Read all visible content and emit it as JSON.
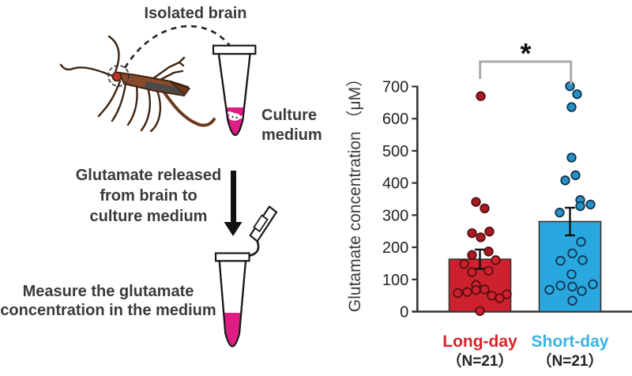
{
  "diagram": {
    "isolated_brain_label": "Isolated brain",
    "culture_medium": {
      "line1": "Culture",
      "line2": "medium"
    },
    "released": {
      "line1": "Glutamate released",
      "line2": "from brain to",
      "line3": "culture medium"
    },
    "measure": {
      "line1": "Measure the glutamate",
      "line2": "concentration in the medium"
    },
    "colors": {
      "medium_pink": "#DE1E83",
      "insect_brown": "#8A4A2C",
      "insect_dark": "#3F2410",
      "outline": "#1a1a1a"
    }
  },
  "chart_data": {
    "type": "bar+scatter",
    "ylabel": "Glutamate concentration （μM）",
    "ylim": [
      0,
      700
    ],
    "yticks": [
      0,
      100,
      200,
      300,
      400,
      500,
      600,
      700
    ],
    "significance_label": "*",
    "bracket_color": "#ababab",
    "categories": [
      "Long-day",
      "Short-day"
    ],
    "series": [
      {
        "name": "Long-day",
        "n_label": "（N=21）",
        "n": 21,
        "mean": 163,
        "sem": 30,
        "bar_color": "#CE212E",
        "point_fill": "#A81B22",
        "point_stroke": "#5A0E13",
        "label_color": "#D6242C",
        "points": [
          {
            "v": 670,
            "dx": 1
          },
          {
            "v": 341,
            "dx": -5
          },
          {
            "v": 321,
            "dx": 6
          },
          {
            "v": 249,
            "dx": 12
          },
          {
            "v": 244,
            "dx": -10
          },
          {
            "v": 231,
            "dx": 1
          },
          {
            "v": 187,
            "dx": 11
          },
          {
            "v": 176,
            "dx": -10
          },
          {
            "v": 160,
            "dx": 20
          },
          {
            "v": 148,
            "dx": -20
          },
          {
            "v": 127,
            "dx": 11
          },
          {
            "v": 123,
            "dx": -10
          },
          {
            "v": 83,
            "dx": -5
          },
          {
            "v": 69,
            "dx": 6
          },
          {
            "v": 67,
            "dx": -5
          },
          {
            "v": 61,
            "dx": -16
          },
          {
            "v": 58,
            "dx": -28
          },
          {
            "v": 54,
            "dx": 34
          },
          {
            "v": 50,
            "dx": 15
          },
          {
            "v": 42,
            "dx": 25
          },
          {
            "v": 2,
            "dx": 0
          }
        ]
      },
      {
        "name": "Short-day",
        "n_label": "（N=21）",
        "n": 21,
        "mean": 280,
        "sem": 43,
        "bar_color": "#29A8E0",
        "point_fill": "#2492C6",
        "point_stroke": "#14324F",
        "label_color": "#3BB2E6",
        "points": [
          {
            "v": 701,
            "dx": 0
          },
          {
            "v": 676,
            "dx": 9
          },
          {
            "v": 636,
            "dx": 2
          },
          {
            "v": 479,
            "dx": 2
          },
          {
            "v": 424,
            "dx": 7
          },
          {
            "v": 408,
            "dx": -6
          },
          {
            "v": 347,
            "dx": 13
          },
          {
            "v": 333,
            "dx": 26
          },
          {
            "v": 328,
            "dx": 13
          },
          {
            "v": 308,
            "dx": -13
          },
          {
            "v": 217,
            "dx": 14
          },
          {
            "v": 181,
            "dx": 3
          },
          {
            "v": 160,
            "dx": 16
          },
          {
            "v": 158,
            "dx": -12
          },
          {
            "v": 116,
            "dx": 2
          },
          {
            "v": 85,
            "dx": 29
          },
          {
            "v": 81,
            "dx": -12
          },
          {
            "v": 78,
            "dx": 3
          },
          {
            "v": 68,
            "dx": -26
          },
          {
            "v": 64,
            "dx": 15
          },
          {
            "v": 34,
            "dx": 3
          }
        ]
      }
    ]
  }
}
